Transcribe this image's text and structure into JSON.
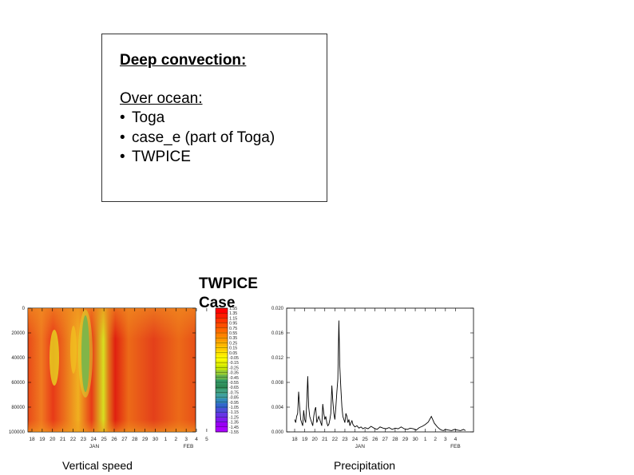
{
  "textbox": {
    "heading": "Deep convection:",
    "subheading": "Over ocean:",
    "items": [
      "Toga",
      "case_e  (part of Toga)",
      "TWPICE"
    ],
    "bullet": "•"
  },
  "figure_title": "TWPICE\nCase",
  "captions": {
    "left": "Vertical speed",
    "right": "Precipitation"
  },
  "colors": {
    "background": "#ffffff",
    "heat_low": "#e8561f",
    "heat_high": "#e02020"
  },
  "chart_data": [
    {
      "type": "heatmap",
      "title": "",
      "x_tick_labels": [
        "18",
        "19",
        "20",
        "21",
        "22",
        "23",
        "24",
        "25",
        "26",
        "27",
        "28",
        "29",
        "30",
        "1",
        "2",
        "3",
        "4",
        "5"
      ],
      "x_month_labels": [
        "JAN",
        "FEB"
      ],
      "y_tick_labels": [
        "0",
        "20000",
        "40000",
        "60000",
        "80000",
        "100000"
      ],
      "colorbar_labels": [
        "1.55",
        "1.35",
        "1.15",
        "0.95",
        "0.75",
        "0.55",
        "0.35",
        "0.25",
        "0.15",
        "0.05",
        "-0.05",
        "-0.15",
        "-0.25",
        "-0.35",
        "-0.45",
        "-0.55",
        "-0.65",
        "-0.75",
        "-0.85",
        "-0.95",
        "-1.05",
        "-1.15",
        "-1.25",
        "-1.35",
        "-1.45",
        "-1.55"
      ],
      "colorbar_colors": [
        "#ff0000",
        "#ff1a00",
        "#ff3300",
        "#ff4d00",
        "#ff6600",
        "#ff8000",
        "#ff9900",
        "#ffb300",
        "#ffcc00",
        "#ffe600",
        "#ffff00",
        "#e6f000",
        "#c8e600",
        "#99cc33",
        "#66b34d",
        "#339966",
        "#2e8b57",
        "#40a080",
        "#3fa0a0",
        "#3388bb",
        "#3366cc",
        "#4d4dd9",
        "#6633e6",
        "#7f1aee",
        "#9900f5",
        "#aa00ff"
      ]
    },
    {
      "type": "line",
      "title": "",
      "xlabel": "",
      "ylabel": "",
      "x_tick_labels": [
        "18",
        "19",
        "20",
        "21",
        "22",
        "23",
        "24",
        "25",
        "26",
        "27",
        "28",
        "29",
        "30",
        "1",
        "2",
        "3",
        "4"
      ],
      "x_month_labels": [
        "JAN",
        "FEB"
      ],
      "y_tick_labels": [
        "0.000",
        "0.004",
        "0.008",
        "0.012",
        "0.016",
        "0.020"
      ],
      "ylim": [
        0,
        0.02
      ],
      "x": [
        18,
        18.1,
        18.2,
        18.3,
        18.4,
        18.5,
        18.6,
        18.7,
        18.8,
        18.9,
        19,
        19.1,
        19.2,
        19.3,
        19.4,
        19.5,
        19.6,
        19.7,
        19.8,
        19.9,
        20,
        20.1,
        20.2,
        20.3,
        20.4,
        20.5,
        20.6,
        20.7,
        20.8,
        20.9,
        21,
        21.1,
        21.2,
        21.3,
        21.4,
        21.5,
        21.6,
        21.7,
        21.8,
        21.9,
        22,
        22.1,
        22.2,
        22.3,
        22.4,
        22.5,
        22.6,
        22.7,
        22.8,
        22.9,
        23,
        23.1,
        23.2,
        23.3,
        23.4,
        23.5,
        23.6,
        23.7,
        23.8,
        23.9,
        24,
        24.2,
        24.4,
        24.6,
        24.8,
        25,
        25.3,
        25.6,
        25.9,
        26.2,
        26.5,
        26.8,
        27.1,
        27.4,
        27.7,
        28,
        28.3,
        28.6,
        28.9,
        29.2,
        29.5,
        29.8,
        30.1,
        30.4,
        30.7,
        31,
        31.3,
        31.6,
        31.9,
        32.2,
        32.4,
        32.6,
        32.8,
        33,
        33.3,
        33.6,
        33.9,
        34.2,
        34.5,
        34.8,
        35
      ],
      "values": [
        0.002,
        0.0015,
        0.0025,
        0.003,
        0.0065,
        0.004,
        0.002,
        0.0015,
        0.001,
        0.0035,
        0.002,
        0.0015,
        0.0045,
        0.009,
        0.004,
        0.0025,
        0.002,
        0.0015,
        0.001,
        0.0025,
        0.0035,
        0.004,
        0.0015,
        0.002,
        0.0025,
        0.002,
        0.0015,
        0.001,
        0.0045,
        0.003,
        0.002,
        0.0025,
        0.0015,
        0.001,
        0.0012,
        0.002,
        0.003,
        0.0075,
        0.005,
        0.003,
        0.002,
        0.004,
        0.0065,
        0.0085,
        0.018,
        0.0105,
        0.007,
        0.004,
        0.0025,
        0.002,
        0.0015,
        0.003,
        0.0025,
        0.0015,
        0.002,
        0.001,
        0.0015,
        0.0018,
        0.0012,
        0.001,
        0.0008,
        0.001,
        0.0006,
        0.0008,
        0.0005,
        0.0007,
        0.0005,
        0.0009,
        0.0006,
        0.0004,
        0.0008,
        0.0006,
        0.0005,
        0.0007,
        0.0004,
        0.0006,
        0.0005,
        0.0008,
        0.0005,
        0.0004,
        0.0006,
        0.0005,
        0.0003,
        0.0007,
        0.0009,
        0.0012,
        0.0016,
        0.0025,
        0.0014,
        0.0008,
        0.0005,
        0.0003,
        0.0002,
        0.0004,
        0.0003,
        0.0002,
        0.0004,
        0.0003,
        0.0002,
        0.0004,
        0.0002
      ]
    }
  ]
}
